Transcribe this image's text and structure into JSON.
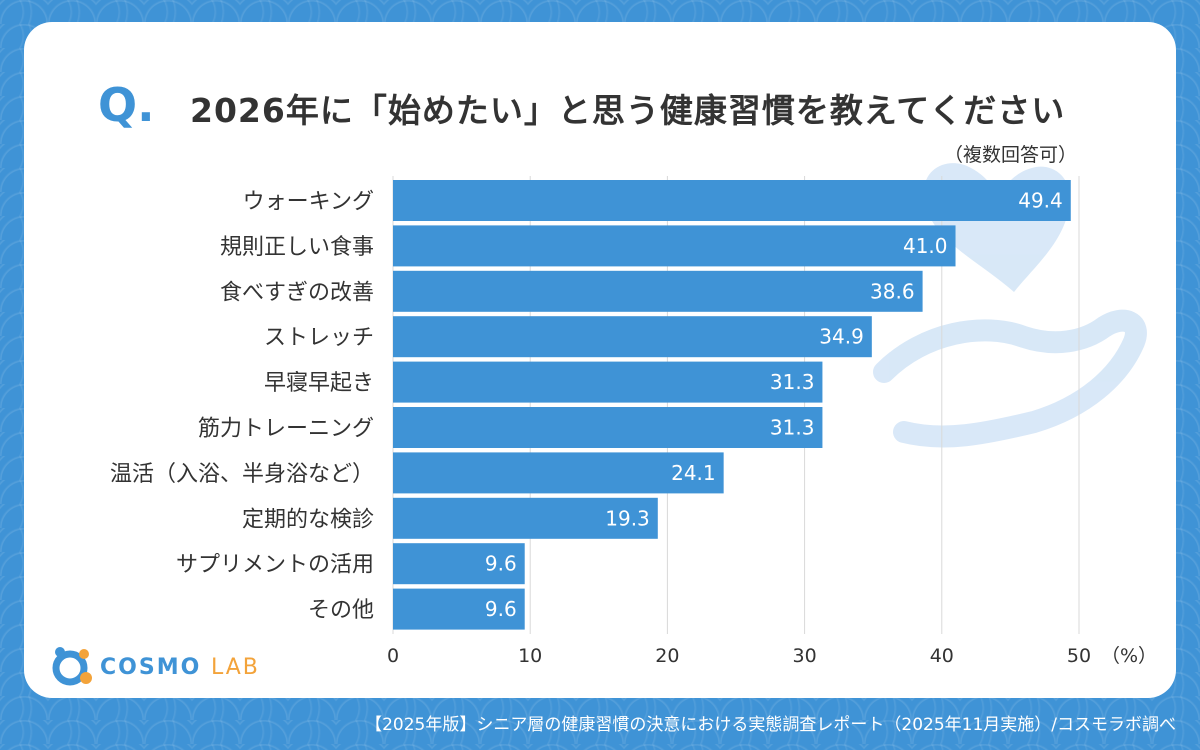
{
  "question": {
    "marker": "Q",
    "marker_dot": ".",
    "title": "2026年に「始めたい」と思う健康習慣を教えてください",
    "note": "（複数回答可）"
  },
  "brand": {
    "name_main": "COSMO",
    "name_sub": "LAB",
    "accent": "#3f93d6",
    "accent_sub": "#f3a33a"
  },
  "footer": {
    "source": "【2025年版】シニア層の健康習慣の決意における実態調査レポート（2025年11月実施）/コスモラボ調べ"
  },
  "chart_data": {
    "type": "bar",
    "orientation": "horizontal",
    "title": "2026年に「始めたい」と思う健康習慣を教えてください",
    "categories": [
      "ウォーキング",
      "規則正しい食事",
      "食べすぎの改善",
      "ストレッチ",
      "早寝早起き",
      "筋力トレーニング",
      "温活（入浴、半身浴など）",
      "定期的な検診",
      "サプリメントの活用",
      "その他"
    ],
    "values": [
      49.4,
      41.0,
      38.6,
      34.9,
      31.3,
      31.3,
      24.1,
      19.3,
      9.6,
      9.6
    ],
    "value_labels": [
      "49.4",
      "41.0",
      "38.6",
      "34.9",
      "31.3",
      "31.3",
      "24.1",
      "19.3",
      "9.6",
      "9.6"
    ],
    "xlim": [
      0,
      50
    ],
    "xticks": [
      "0",
      "10",
      "20",
      "30",
      "40",
      "50"
    ],
    "unit_label": "（%）",
    "grid": true,
    "bar_color": "#3f93d6"
  }
}
